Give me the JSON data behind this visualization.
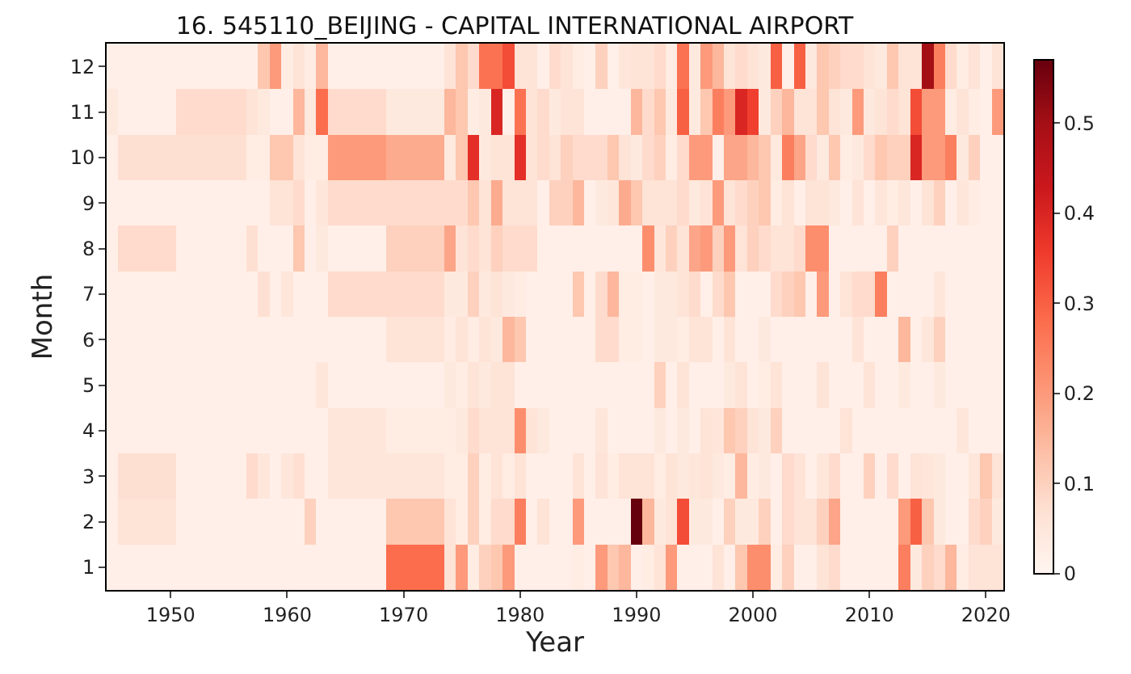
{
  "chart_data": {
    "type": "heatmap",
    "title": "16. 545110_BEIJING - CAPITAL INTERNATIONAL AIRPORT",
    "xlabel": "Year",
    "ylabel": "Month",
    "x": [
      1945,
      1946,
      1947,
      1948,
      1949,
      1950,
      1951,
      1952,
      1953,
      1954,
      1955,
      1956,
      1957,
      1958,
      1959,
      1960,
      1961,
      1962,
      1963,
      1964,
      1965,
      1966,
      1967,
      1968,
      1969,
      1970,
      1971,
      1972,
      1973,
      1974,
      1975,
      1976,
      1977,
      1978,
      1979,
      1980,
      1981,
      1982,
      1983,
      1984,
      1985,
      1986,
      1987,
      1988,
      1989,
      1990,
      1991,
      1992,
      1993,
      1994,
      1995,
      1996,
      1997,
      1998,
      1999,
      2000,
      2001,
      2002,
      2003,
      2004,
      2005,
      2006,
      2007,
      2008,
      2009,
      2010,
      2011,
      2012,
      2013,
      2014,
      2015,
      2016,
      2017,
      2018,
      2019,
      2020,
      2021
    ],
    "y_categories": [
      "12",
      "11",
      "10",
      "9",
      "8",
      "7",
      "6",
      "5",
      "4",
      "3",
      "2",
      "1"
    ],
    "cells": [
      [
        0.02,
        0.02,
        0.02,
        0.02,
        0.02,
        0.02,
        0.02,
        0.02,
        0.02,
        0.02,
        0.02,
        0.02,
        0.02,
        0.12,
        0.2,
        0.03,
        0.06,
        0.03,
        0.15,
        0.02,
        0.02,
        0.02,
        0.02,
        0.02,
        0.02,
        0.02,
        0.02,
        0.02,
        0.02,
        0.06,
        0.12,
        0.08,
        0.27,
        0.27,
        0.33,
        0.06,
        0.06,
        0.02,
        0.08,
        0.06,
        0.03,
        0.02,
        0.1,
        0.02,
        0.05,
        0.06,
        0.06,
        0.08,
        0.03,
        0.27,
        0.04,
        0.2,
        0.15,
        0.06,
        0.08,
        0.06,
        0.04,
        0.3,
        0.02,
        0.3,
        0.04,
        0.12,
        0.1,
        0.08,
        0.08,
        0.06,
        0.04,
        0.12,
        0.06,
        0.06,
        0.5,
        0.25,
        0.08,
        0.03,
        0.06,
        0.02,
        0.06
      ],
      [
        0.04,
        0.02,
        0.02,
        0.02,
        0.02,
        0.02,
        0.08,
        0.08,
        0.08,
        0.08,
        0.08,
        0.08,
        0.06,
        0.04,
        0.02,
        0.02,
        0.15,
        0.04,
        0.28,
        0.08,
        0.08,
        0.08,
        0.08,
        0.08,
        0.04,
        0.04,
        0.04,
        0.04,
        0.04,
        0.15,
        0.12,
        0.03,
        0.04,
        0.4,
        0.02,
        0.27,
        0.06,
        0.08,
        0.04,
        0.06,
        0.06,
        0.02,
        0.02,
        0.02,
        0.02,
        0.15,
        0.08,
        0.12,
        0.04,
        0.3,
        0.04,
        0.12,
        0.25,
        0.2,
        0.4,
        0.35,
        0.04,
        0.1,
        0.15,
        0.06,
        0.06,
        0.12,
        0.06,
        0.04,
        0.2,
        0.04,
        0.06,
        0.08,
        0.06,
        0.33,
        0.2,
        0.2,
        0.03,
        0.06,
        0.03,
        0.02,
        0.2
      ],
      [
        0.02,
        0.07,
        0.07,
        0.07,
        0.07,
        0.07,
        0.07,
        0.07,
        0.07,
        0.07,
        0.07,
        0.07,
        0.03,
        0.03,
        0.12,
        0.12,
        0.06,
        0.03,
        0.03,
        0.2,
        0.2,
        0.2,
        0.2,
        0.2,
        0.17,
        0.17,
        0.17,
        0.17,
        0.17,
        0.04,
        0.12,
        0.38,
        0.04,
        0.06,
        0.06,
        0.38,
        0.06,
        0.08,
        0.06,
        0.1,
        0.08,
        0.08,
        0.08,
        0.12,
        0.06,
        0.04,
        0.08,
        0.1,
        0.03,
        0.08,
        0.2,
        0.2,
        0.02,
        0.18,
        0.18,
        0.15,
        0.12,
        0.04,
        0.25,
        0.18,
        0.08,
        0.04,
        0.12,
        0.03,
        0.04,
        0.08,
        0.12,
        0.1,
        0.1,
        0.4,
        0.2,
        0.2,
        0.25,
        0.04,
        0.1,
        0.02,
        0.02
      ],
      [
        0.02,
        0.02,
        0.02,
        0.02,
        0.02,
        0.02,
        0.02,
        0.02,
        0.02,
        0.02,
        0.02,
        0.02,
        0.02,
        0.02,
        0.06,
        0.06,
        0.08,
        0.02,
        0.05,
        0.08,
        0.08,
        0.08,
        0.08,
        0.08,
        0.08,
        0.08,
        0.08,
        0.08,
        0.08,
        0.08,
        0.08,
        0.12,
        0.06,
        0.17,
        0.06,
        0.06,
        0.06,
        0.02,
        0.1,
        0.1,
        0.15,
        0.02,
        0.04,
        0.05,
        0.17,
        0.12,
        0.06,
        0.06,
        0.06,
        0.08,
        0.04,
        0.06,
        0.2,
        0.06,
        0.08,
        0.1,
        0.12,
        0.03,
        0.06,
        0.02,
        0.06,
        0.06,
        0.04,
        0.02,
        0.06,
        0.02,
        0.05,
        0.03,
        0.05,
        0.02,
        0.06,
        0.1,
        0.02,
        0.05,
        0.03,
        0.02,
        0.02
      ],
      [
        0.02,
        0.08,
        0.08,
        0.08,
        0.08,
        0.08,
        0.02,
        0.02,
        0.02,
        0.02,
        0.02,
        0.02,
        0.07,
        0.02,
        0.02,
        0.02,
        0.12,
        0.02,
        0.04,
        0.02,
        0.02,
        0.02,
        0.02,
        0.02,
        0.1,
        0.1,
        0.1,
        0.1,
        0.1,
        0.18,
        0.06,
        0.08,
        0.06,
        0.1,
        0.08,
        0.08,
        0.08,
        0.02,
        0.02,
        0.02,
        0.02,
        0.02,
        0.02,
        0.02,
        0.02,
        0.02,
        0.22,
        0.05,
        0.1,
        0.06,
        0.18,
        0.2,
        0.1,
        0.2,
        0.06,
        0.1,
        0.08,
        0.06,
        0.06,
        0.08,
        0.22,
        0.22,
        0.02,
        0.02,
        0.02,
        0.02,
        0.02,
        0.1,
        0.02,
        0.02,
        0.02,
        0.02,
        0.02,
        0.02,
        0.02,
        0.02,
        0.02
      ],
      [
        0.02,
        0.02,
        0.02,
        0.02,
        0.02,
        0.02,
        0.02,
        0.02,
        0.02,
        0.02,
        0.02,
        0.02,
        0.02,
        0.07,
        0.02,
        0.05,
        0.02,
        0.02,
        0.02,
        0.08,
        0.08,
        0.08,
        0.08,
        0.08,
        0.08,
        0.08,
        0.08,
        0.08,
        0.08,
        0.04,
        0.04,
        0.1,
        0.04,
        0.06,
        0.04,
        0.03,
        0.02,
        0.02,
        0.02,
        0.02,
        0.12,
        0.02,
        0.08,
        0.15,
        0.03,
        0.03,
        0.02,
        0.04,
        0.04,
        0.06,
        0.08,
        0.02,
        0.08,
        0.12,
        0.02,
        0.02,
        0.02,
        0.08,
        0.1,
        0.12,
        0.02,
        0.2,
        0.02,
        0.06,
        0.08,
        0.08,
        0.25,
        0.02,
        0.02,
        0.02,
        0.02,
        0.05,
        0.02,
        0.02,
        0.02,
        0.02,
        0.02
      ],
      [
        0.02,
        0.02,
        0.02,
        0.02,
        0.02,
        0.02,
        0.02,
        0.02,
        0.02,
        0.02,
        0.02,
        0.02,
        0.02,
        0.02,
        0.02,
        0.02,
        0.02,
        0.02,
        0.02,
        0.02,
        0.02,
        0.02,
        0.02,
        0.02,
        0.06,
        0.06,
        0.06,
        0.06,
        0.06,
        0.03,
        0.06,
        0.03,
        0.06,
        0.04,
        0.15,
        0.12,
        0.02,
        0.02,
        0.02,
        0.02,
        0.02,
        0.02,
        0.08,
        0.08,
        0.03,
        0.03,
        0.02,
        0.04,
        0.04,
        0.03,
        0.06,
        0.06,
        0.02,
        0.06,
        0.02,
        0.02,
        0.04,
        0.02,
        0.02,
        0.02,
        0.02,
        0.02,
        0.02,
        0.02,
        0.06,
        0.02,
        0.02,
        0.02,
        0.15,
        0.02,
        0.05,
        0.1,
        0.02,
        0.02,
        0.02,
        0.02,
        0.02
      ],
      [
        0.02,
        0.02,
        0.02,
        0.02,
        0.02,
        0.02,
        0.02,
        0.02,
        0.02,
        0.02,
        0.02,
        0.02,
        0.02,
        0.02,
        0.02,
        0.02,
        0.02,
        0.02,
        0.05,
        0.02,
        0.02,
        0.02,
        0.02,
        0.02,
        0.02,
        0.02,
        0.02,
        0.02,
        0.02,
        0.04,
        0.03,
        0.06,
        0.04,
        0.06,
        0.06,
        0.02,
        0.02,
        0.02,
        0.02,
        0.02,
        0.02,
        0.02,
        0.02,
        0.02,
        0.02,
        0.02,
        0.02,
        0.1,
        0.02,
        0.06,
        0.02,
        0.02,
        0.02,
        0.04,
        0.06,
        0.02,
        0.03,
        0.06,
        0.02,
        0.02,
        0.02,
        0.06,
        0.02,
        0.02,
        0.02,
        0.06,
        0.02,
        0.02,
        0.04,
        0.02,
        0.02,
        0.04,
        0.02,
        0.02,
        0.02,
        0.02,
        0.02
      ],
      [
        0.02,
        0.02,
        0.02,
        0.02,
        0.02,
        0.02,
        0.02,
        0.02,
        0.02,
        0.02,
        0.02,
        0.02,
        0.02,
        0.02,
        0.02,
        0.02,
        0.02,
        0.02,
        0.02,
        0.05,
        0.05,
        0.05,
        0.05,
        0.05,
        0.03,
        0.03,
        0.03,
        0.03,
        0.03,
        0.03,
        0.04,
        0.08,
        0.06,
        0.06,
        0.06,
        0.22,
        0.06,
        0.04,
        0.02,
        0.02,
        0.02,
        0.02,
        0.05,
        0.02,
        0.02,
        0.02,
        0.02,
        0.04,
        0.02,
        0.04,
        0.02,
        0.06,
        0.05,
        0.12,
        0.1,
        0.06,
        0.04,
        0.1,
        0.02,
        0.02,
        0.02,
        0.02,
        0.02,
        0.06,
        0.02,
        0.02,
        0.02,
        0.02,
        0.02,
        0.02,
        0.02,
        0.02,
        0.02,
        0.05,
        0.02,
        0.02,
        0.02
      ],
      [
        0.02,
        0.07,
        0.07,
        0.07,
        0.07,
        0.07,
        0.02,
        0.02,
        0.02,
        0.02,
        0.02,
        0.02,
        0.08,
        0.05,
        0.02,
        0.05,
        0.07,
        0.02,
        0.02,
        0.05,
        0.05,
        0.05,
        0.05,
        0.05,
        0.05,
        0.05,
        0.05,
        0.05,
        0.05,
        0.03,
        0.03,
        0.1,
        0.03,
        0.06,
        0.03,
        0.06,
        0.02,
        0.02,
        0.02,
        0.02,
        0.06,
        0.02,
        0.06,
        0.03,
        0.06,
        0.06,
        0.06,
        0.03,
        0.06,
        0.04,
        0.05,
        0.06,
        0.04,
        0.03,
        0.15,
        0.03,
        0.04,
        0.02,
        0.08,
        0.06,
        0.02,
        0.05,
        0.08,
        0.02,
        0.02,
        0.1,
        0.02,
        0.08,
        0.02,
        0.06,
        0.05,
        0.04,
        0.02,
        0.02,
        0.05,
        0.12,
        0.06
      ],
      [
        0.02,
        0.06,
        0.06,
        0.06,
        0.06,
        0.06,
        0.02,
        0.02,
        0.02,
        0.02,
        0.02,
        0.02,
        0.02,
        0.02,
        0.02,
        0.02,
        0.02,
        0.1,
        0.02,
        0.02,
        0.02,
        0.02,
        0.02,
        0.02,
        0.12,
        0.12,
        0.12,
        0.12,
        0.12,
        0.06,
        0.03,
        0.1,
        0.03,
        0.08,
        0.08,
        0.25,
        0.02,
        0.06,
        0.02,
        0.02,
        0.2,
        0.02,
        0.02,
        0.02,
        0.02,
        0.57,
        0.15,
        0.04,
        0.06,
        0.33,
        0.04,
        0.04,
        0.02,
        0.1,
        0.04,
        0.04,
        0.1,
        0.02,
        0.08,
        0.06,
        0.06,
        0.1,
        0.18,
        0.02,
        0.02,
        0.02,
        0.02,
        0.02,
        0.2,
        0.3,
        0.12,
        0.04,
        0.02,
        0.02,
        0.08,
        0.1,
        0.04
      ],
      [
        0.02,
        0.02,
        0.02,
        0.02,
        0.02,
        0.02,
        0.02,
        0.02,
        0.02,
        0.02,
        0.02,
        0.02,
        0.02,
        0.02,
        0.02,
        0.02,
        0.02,
        0.02,
        0.02,
        0.02,
        0.02,
        0.02,
        0.02,
        0.02,
        0.28,
        0.28,
        0.28,
        0.28,
        0.28,
        0.06,
        0.2,
        0.03,
        0.1,
        0.12,
        0.2,
        0.02,
        0.02,
        0.02,
        0.02,
        0.02,
        0.03,
        0.02,
        0.2,
        0.12,
        0.15,
        0.02,
        0.03,
        0.06,
        0.2,
        0.02,
        0.02,
        0.02,
        0.06,
        0.02,
        0.12,
        0.22,
        0.22,
        0.03,
        0.1,
        0.02,
        0.02,
        0.06,
        0.08,
        0.02,
        0.02,
        0.02,
        0.02,
        0.02,
        0.25,
        0.04,
        0.1,
        0.08,
        0.15,
        0.03,
        0.06,
        0.06,
        0.06
      ]
    ],
    "xlim": [
      1944.5,
      2021.5
    ],
    "xticks": [
      1950,
      1960,
      1970,
      1980,
      1990,
      2000,
      2010,
      2020
    ],
    "clim": [
      0,
      0.57
    ],
    "cticks": [
      0,
      0.1,
      0.2,
      0.3,
      0.4,
      0.5
    ]
  }
}
